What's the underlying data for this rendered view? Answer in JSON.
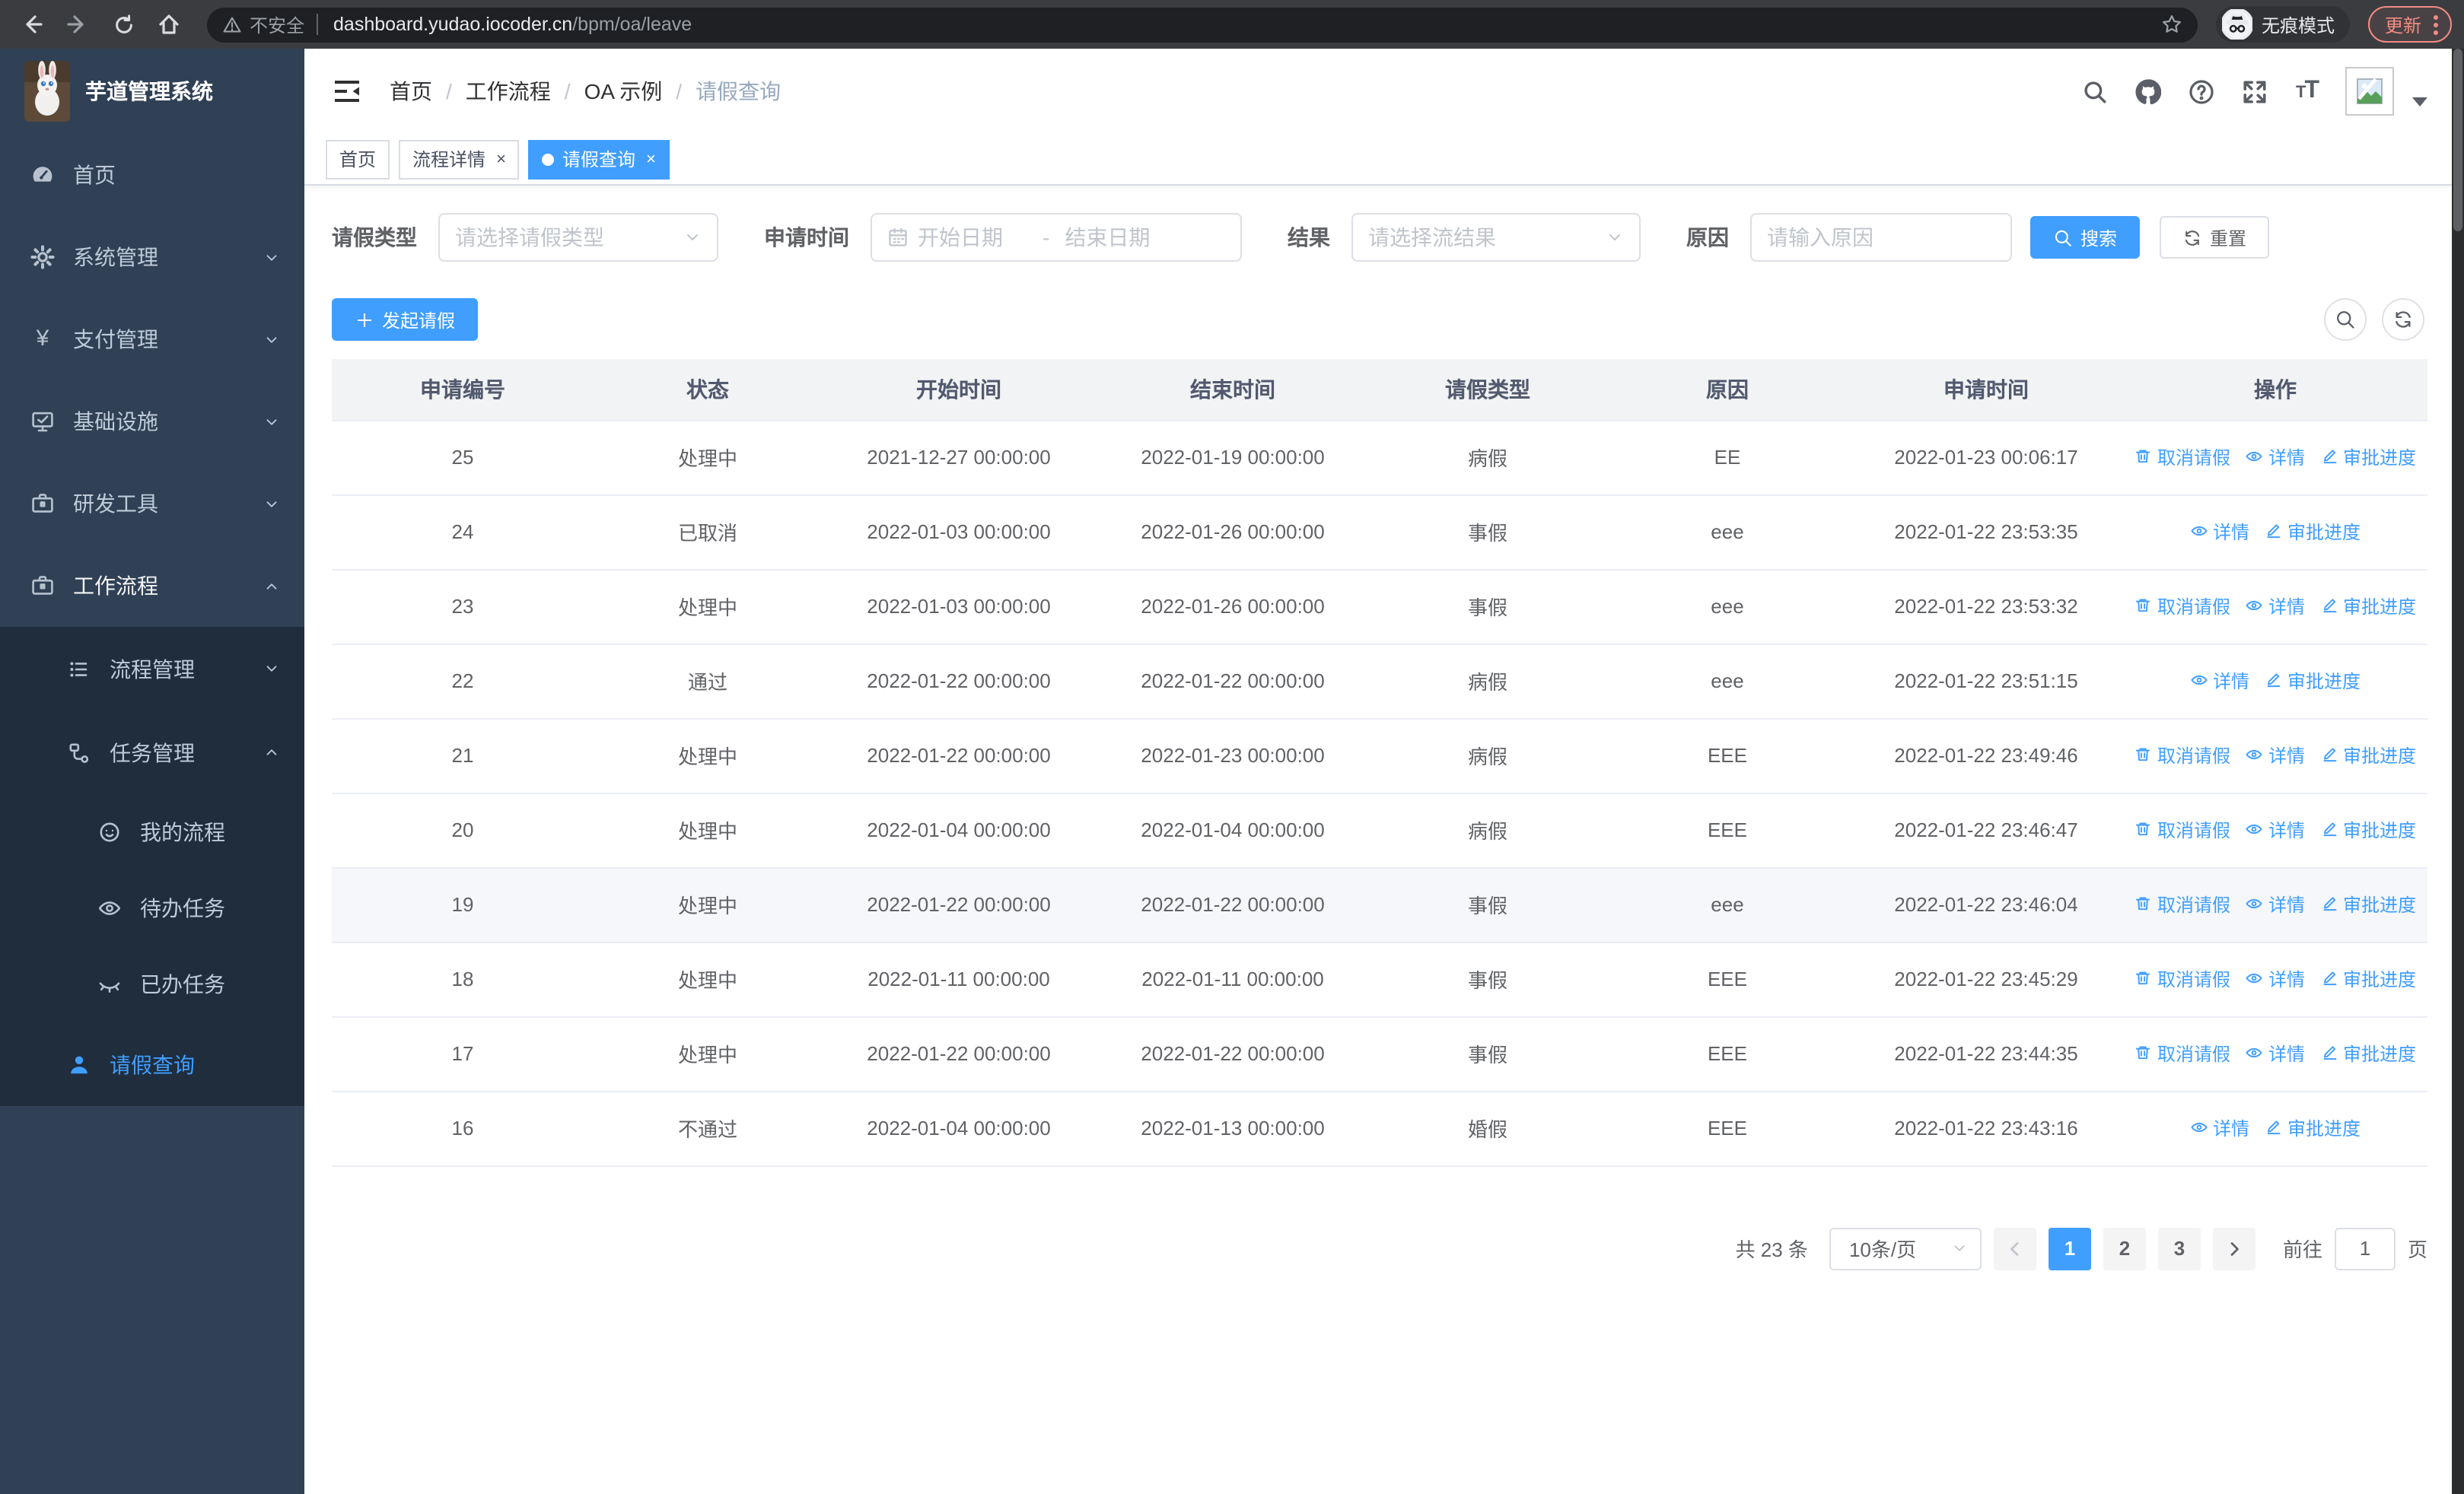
{
  "browser": {
    "not_secure": "不安全",
    "url_host": "dashboard.yudao.iocoder.cn",
    "url_path": "/bpm/oa/leave",
    "incognito_label": "无痕模式",
    "update_label": "更新"
  },
  "app": {
    "title": "芋道管理系统"
  },
  "breadcrumb": {
    "items": [
      "首页",
      "工作流程",
      "OA 示例",
      "请假查询"
    ],
    "separator": "/"
  },
  "tabs": [
    {
      "label": "首页",
      "closable": false,
      "active": false
    },
    {
      "label": "流程详情",
      "closable": true,
      "active": false
    },
    {
      "label": "请假查询",
      "closable": true,
      "active": true
    }
  ],
  "sidebar": {
    "items": [
      {
        "label": "首页",
        "icon": "dashboard-icon",
        "level": 1,
        "arrow": "none"
      },
      {
        "label": "系统管理",
        "icon": "gear-icon",
        "level": 1,
        "arrow": "down"
      },
      {
        "label": "支付管理",
        "icon": "yen-icon",
        "level": 1,
        "arrow": "down"
      },
      {
        "label": "基础设施",
        "icon": "monitor-icon",
        "level": 1,
        "arrow": "down"
      },
      {
        "label": "研发工具",
        "icon": "briefcase-icon",
        "level": 1,
        "arrow": "down"
      },
      {
        "label": "工作流程",
        "icon": "briefcase-icon",
        "level": 1,
        "arrow": "up",
        "parent_active": true
      },
      {
        "label": "流程管理",
        "icon": "list-icon",
        "level": 2,
        "arrow": "down"
      },
      {
        "label": "任务管理",
        "icon": "share-icon",
        "level": 2,
        "arrow": "up"
      },
      {
        "label": "我的流程",
        "icon": "face-icon",
        "level": 3,
        "arrow": "none"
      },
      {
        "label": "待办任务",
        "icon": "eye-open-icon",
        "level": 3,
        "arrow": "none"
      },
      {
        "label": "已办任务",
        "icon": "eye-closed-icon",
        "level": 3,
        "arrow": "none"
      },
      {
        "label": "请假查询",
        "icon": "person-icon",
        "level": 2,
        "arrow": "none",
        "active": true
      }
    ]
  },
  "filters": {
    "leave_type": {
      "label": "请假类型",
      "placeholder": "请选择请假类型"
    },
    "apply_time": {
      "label": "申请时间",
      "start_placeholder": "开始日期",
      "separator": "-",
      "end_placeholder": "结束日期"
    },
    "result": {
      "label": "结果",
      "placeholder": "请选择流结果"
    },
    "reason": {
      "label": "原因",
      "placeholder": "请输入原因"
    },
    "search_label": "搜索",
    "reset_label": "重置"
  },
  "toolbar": {
    "create_label": "发起请假"
  },
  "table": {
    "columns": [
      "申请编号",
      "状态",
      "开始时间",
      "结束时间",
      "请假类型",
      "原因",
      "申请时间",
      "操作"
    ],
    "action_labels": {
      "cancel": "取消请假",
      "detail": "详情",
      "progress": "审批进度"
    },
    "rows": [
      {
        "id": "25",
        "status": "处理中",
        "start_time": "2021-12-27 00:00:00",
        "end_time": "2022-01-19 00:00:00",
        "leave_type": "病假",
        "reason": "EE",
        "apply_time": "2022-01-23 00:06:17",
        "actions": [
          "cancel",
          "detail",
          "progress"
        ]
      },
      {
        "id": "24",
        "status": "已取消",
        "start_time": "2022-01-03 00:00:00",
        "end_time": "2022-01-26 00:00:00",
        "leave_type": "事假",
        "reason": "eee",
        "apply_time": "2022-01-22 23:53:35",
        "actions": [
          "detail",
          "progress"
        ]
      },
      {
        "id": "23",
        "status": "处理中",
        "start_time": "2022-01-03 00:00:00",
        "end_time": "2022-01-26 00:00:00",
        "leave_type": "事假",
        "reason": "eee",
        "apply_time": "2022-01-22 23:53:32",
        "actions": [
          "cancel",
          "detail",
          "progress"
        ]
      },
      {
        "id": "22",
        "status": "通过",
        "start_time": "2022-01-22 00:00:00",
        "end_time": "2022-01-22 00:00:00",
        "leave_type": "病假",
        "reason": "eee",
        "apply_time": "2022-01-22 23:51:15",
        "actions": [
          "detail",
          "progress"
        ]
      },
      {
        "id": "21",
        "status": "处理中",
        "start_time": "2022-01-22 00:00:00",
        "end_time": "2022-01-23 00:00:00",
        "leave_type": "病假",
        "reason": "EEE",
        "apply_time": "2022-01-22 23:49:46",
        "actions": [
          "cancel",
          "detail",
          "progress"
        ]
      },
      {
        "id": "20",
        "status": "处理中",
        "start_time": "2022-01-04 00:00:00",
        "end_time": "2022-01-04 00:00:00",
        "leave_type": "病假",
        "reason": "EEE",
        "apply_time": "2022-01-22 23:46:47",
        "actions": [
          "cancel",
          "detail",
          "progress"
        ]
      },
      {
        "id": "19",
        "status": "处理中",
        "start_time": "2022-01-22 00:00:00",
        "end_time": "2022-01-22 00:00:00",
        "leave_type": "事假",
        "reason": "eee",
        "apply_time": "2022-01-22 23:46:04",
        "actions": [
          "cancel",
          "detail",
          "progress"
        ],
        "highlighted": true
      },
      {
        "id": "18",
        "status": "处理中",
        "start_time": "2022-01-11 00:00:00",
        "end_time": "2022-01-11 00:00:00",
        "leave_type": "事假",
        "reason": "EEE",
        "apply_time": "2022-01-22 23:45:29",
        "actions": [
          "cancel",
          "detail",
          "progress"
        ]
      },
      {
        "id": "17",
        "status": "处理中",
        "start_time": "2022-01-22 00:00:00",
        "end_time": "2022-01-22 00:00:00",
        "leave_type": "事假",
        "reason": "EEE",
        "apply_time": "2022-01-22 23:44:35",
        "actions": [
          "cancel",
          "detail",
          "progress"
        ]
      },
      {
        "id": "16",
        "status": "不通过",
        "start_time": "2022-01-04 00:00:00",
        "end_time": "2022-01-13 00:00:00",
        "leave_type": "婚假",
        "reason": "EEE",
        "apply_time": "2022-01-22 23:43:16",
        "actions": [
          "detail",
          "progress"
        ]
      }
    ]
  },
  "pagination": {
    "total_label": "共 23 条",
    "page_size": "10条/页",
    "pages": [
      "1",
      "2",
      "3"
    ],
    "current": "1",
    "goto_prefix": "前往",
    "goto_value": "1",
    "goto_suffix": "页"
  },
  "colors": {
    "accent": "#409eff",
    "sidebar_bg": "#304156",
    "submenu_bg": "#1f2d3d",
    "update": "#f28b82"
  }
}
